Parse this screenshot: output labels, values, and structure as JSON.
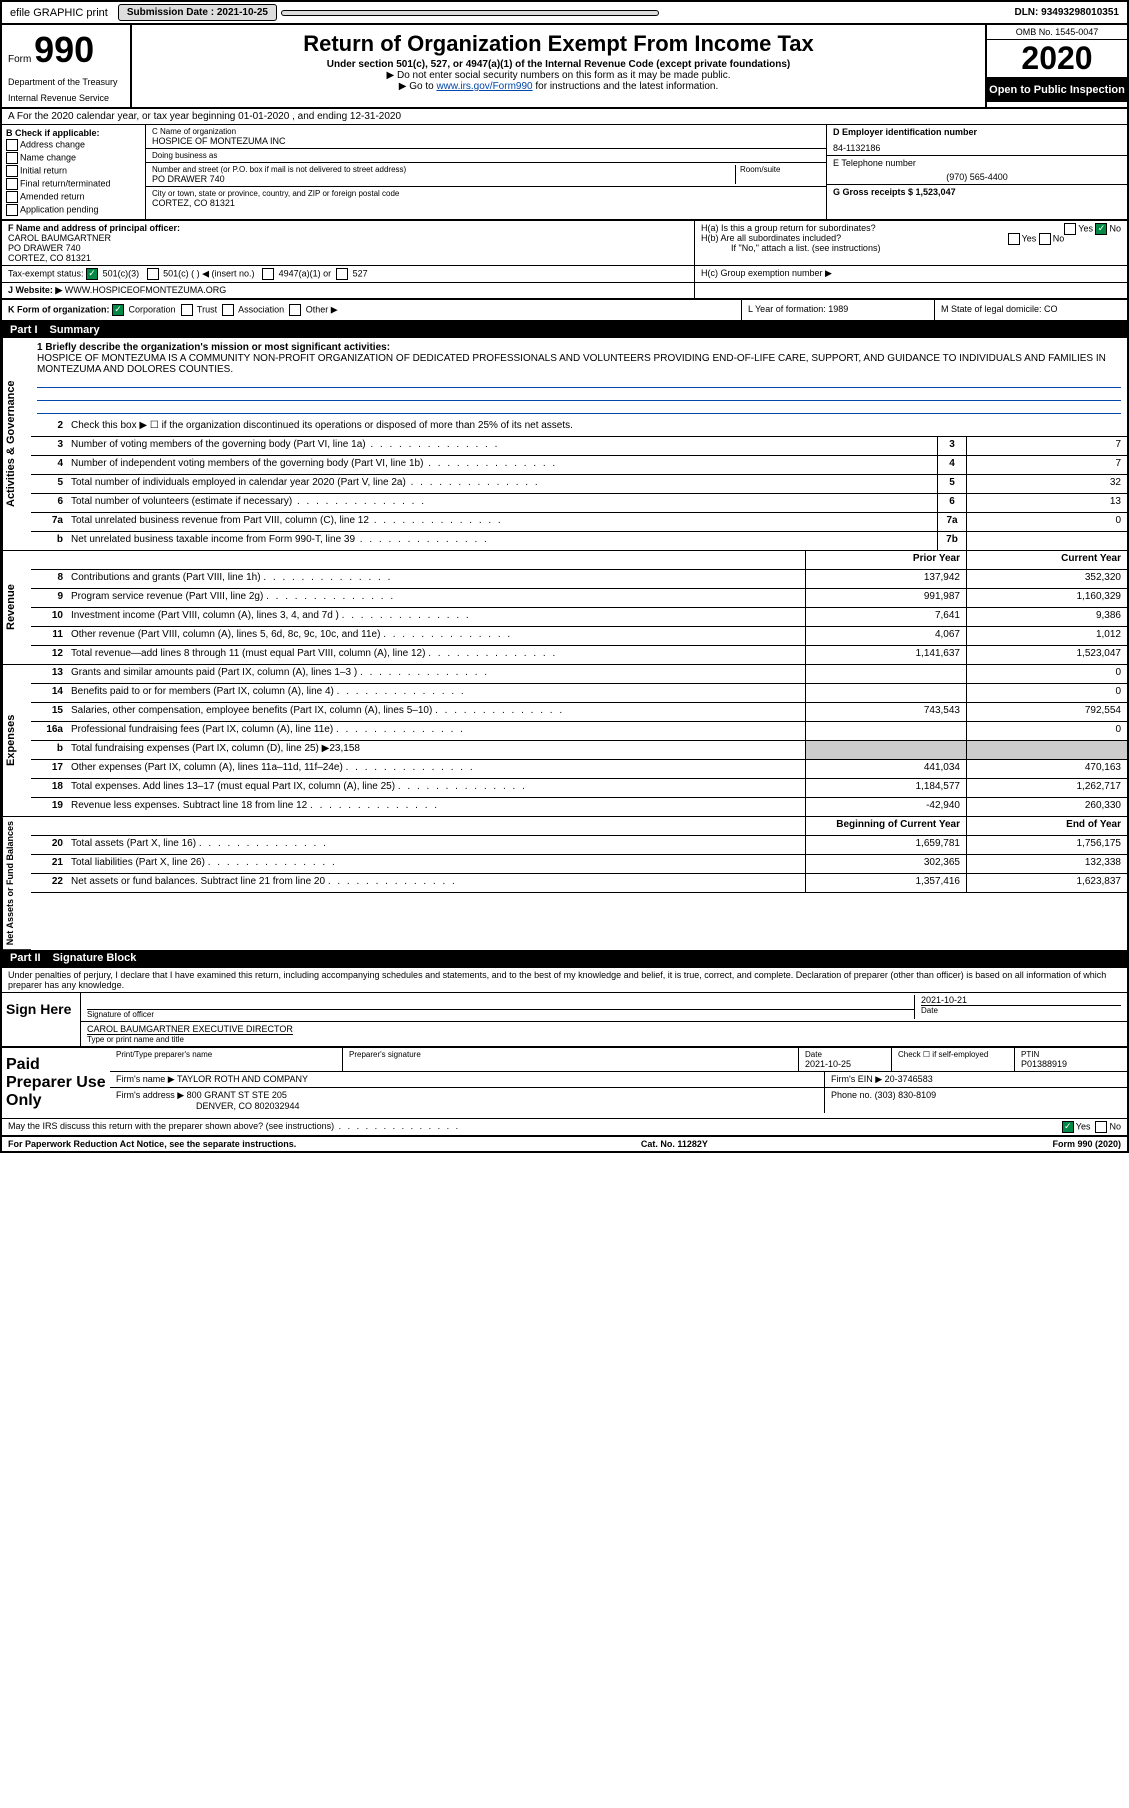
{
  "topbar": {
    "efile": "efile GRAPHIC print",
    "submission_label": "Submission Date : 2021-10-25",
    "dln": "DLN: 93493298010351"
  },
  "header": {
    "form_label": "Form",
    "form_num": "990",
    "title": "Return of Organization Exempt From Income Tax",
    "subtitle": "Under section 501(c), 527, or 4947(a)(1) of the Internal Revenue Code (except private foundations)",
    "note1": "▶ Do not enter social security numbers on this form as it may be made public.",
    "note2_pre": "▶ Go to ",
    "note2_link": "www.irs.gov/Form990",
    "note2_post": " for instructions and the latest information.",
    "dept1": "Department of the Treasury",
    "dept2": "Internal Revenue Service",
    "omb": "OMB No. 1545-0047",
    "year": "2020",
    "open": "Open to Public Inspection"
  },
  "sectionA": "A For the 2020 calendar year, or tax year beginning 01-01-2020    , and ending 12-31-2020",
  "colB": {
    "header": "B Check if applicable:",
    "items": [
      "Address change",
      "Name change",
      "Initial return",
      "Final return/terminated",
      "Amended return",
      "Application pending"
    ]
  },
  "colC": {
    "name_label": "C Name of organization",
    "name": "HOSPICE OF MONTEZUMA INC",
    "dba_label": "Doing business as",
    "addr_label": "Number and street (or P.O. box if mail is not delivered to street address)",
    "room_label": "Room/suite",
    "addr": "PO DRAWER 740",
    "city_label": "City or town, state or province, country, and ZIP or foreign postal code",
    "city": "CORTEZ, CO  81321"
  },
  "colD": {
    "ein_label": "D Employer identification number",
    "ein": "84-1132186",
    "phone_label": "E Telephone number",
    "phone": "(970) 565-4400",
    "gross_label": "G Gross receipts $ 1,523,047"
  },
  "rowF": {
    "label": "F  Name and address of principal officer:",
    "name": "CAROL BAUMGARTNER",
    "addr1": "PO DRAWER 740",
    "addr2": "CORTEZ, CO  81321"
  },
  "rowH": {
    "ha": "H(a)  Is this a group return for subordinates?",
    "hb": "H(b)  Are all subordinates included?",
    "hb_note": "If \"No,\" attach a list. (see instructions)",
    "hc": "H(c)  Group exemption number ▶",
    "yes": "Yes",
    "no": "No"
  },
  "rowI": {
    "label": "Tax-exempt status:",
    "opt1": "501(c)(3)",
    "opt2": "501(c) (  ) ◀ (insert no.)",
    "opt3": "4947(a)(1) or",
    "opt4": "527"
  },
  "rowJ": {
    "label": "J   Website: ▶",
    "url": "WWW.HOSPICEOFMONTEZUMA.ORG"
  },
  "rowK": {
    "label": "K Form of organization:",
    "corp": "Corporation",
    "trust": "Trust",
    "assoc": "Association",
    "other": "Other ▶",
    "year_label": "L Year of formation: 1989",
    "state_label": "M State of legal domicile: CO"
  },
  "part1": {
    "header_num": "Part I",
    "header_title": "Summary",
    "line1_label": "1  Briefly describe the organization's mission or most significant activities:",
    "mission": "HOSPICE OF MONTEZUMA IS A COMMUNITY NON-PROFIT ORGANIZATION OF DEDICATED PROFESSIONALS AND VOLUNTEERS PROVIDING END-OF-LIFE CARE, SUPPORT, AND GUIDANCE TO INDIVIDUALS AND FAMILIES IN MONTEZUMA AND DOLORES COUNTIES.",
    "line2": "Check this box ▶ ☐  if the organization discontinued its operations or disposed of more than 25% of its net assets.",
    "rows_gov": [
      {
        "n": "3",
        "d": "Number of voting members of the governing body (Part VI, line 1a)",
        "b": "3",
        "v": "7"
      },
      {
        "n": "4",
        "d": "Number of independent voting members of the governing body (Part VI, line 1b)",
        "b": "4",
        "v": "7"
      },
      {
        "n": "5",
        "d": "Total number of individuals employed in calendar year 2020 (Part V, line 2a)",
        "b": "5",
        "v": "32"
      },
      {
        "n": "6",
        "d": "Total number of volunteers (estimate if necessary)",
        "b": "6",
        "v": "13"
      },
      {
        "n": "7a",
        "d": "Total unrelated business revenue from Part VIII, column (C), line 12",
        "b": "7a",
        "v": "0"
      },
      {
        "n": "b",
        "d": "Net unrelated business taxable income from Form 990-T, line 39",
        "b": "7b",
        "v": ""
      }
    ],
    "col_prior": "Prior Year",
    "col_current": "Current Year",
    "rows_rev": [
      {
        "n": "8",
        "d": "Contributions and grants (Part VIII, line 1h)",
        "p": "137,942",
        "c": "352,320"
      },
      {
        "n": "9",
        "d": "Program service revenue (Part VIII, line 2g)",
        "p": "991,987",
        "c": "1,160,329"
      },
      {
        "n": "10",
        "d": "Investment income (Part VIII, column (A), lines 3, 4, and 7d )",
        "p": "7,641",
        "c": "9,386"
      },
      {
        "n": "11",
        "d": "Other revenue (Part VIII, column (A), lines 5, 6d, 8c, 9c, 10c, and 11e)",
        "p": "4,067",
        "c": "1,012"
      },
      {
        "n": "12",
        "d": "Total revenue—add lines 8 through 11 (must equal Part VIII, column (A), line 12)",
        "p": "1,141,637",
        "c": "1,523,047"
      }
    ],
    "rows_exp": [
      {
        "n": "13",
        "d": "Grants and similar amounts paid (Part IX, column (A), lines 1–3 )",
        "p": "",
        "c": "0"
      },
      {
        "n": "14",
        "d": "Benefits paid to or for members (Part IX, column (A), line 4)",
        "p": "",
        "c": "0"
      },
      {
        "n": "15",
        "d": "Salaries, other compensation, employee benefits (Part IX, column (A), lines 5–10)",
        "p": "743,543",
        "c": "792,554"
      },
      {
        "n": "16a",
        "d": "Professional fundraising fees (Part IX, column (A), line 11e)",
        "p": "",
        "c": "0"
      },
      {
        "n": "b",
        "d": "Total fundraising expenses (Part IX, column (D), line 25) ▶23,158",
        "p": "shade",
        "c": "shade"
      },
      {
        "n": "17",
        "d": "Other expenses (Part IX, column (A), lines 11a–11d, 11f–24e)",
        "p": "441,034",
        "c": "470,163"
      },
      {
        "n": "18",
        "d": "Total expenses. Add lines 13–17 (must equal Part IX, column (A), line 25)",
        "p": "1,184,577",
        "c": "1,262,717"
      },
      {
        "n": "19",
        "d": "Revenue less expenses. Subtract line 18 from line 12",
        "p": "-42,940",
        "c": "260,330"
      }
    ],
    "col_begin": "Beginning of Current Year",
    "col_end": "End of Year",
    "rows_net": [
      {
        "n": "20",
        "d": "Total assets (Part X, line 16)",
        "p": "1,659,781",
        "c": "1,756,175"
      },
      {
        "n": "21",
        "d": "Total liabilities (Part X, line 26)",
        "p": "302,365",
        "c": "132,338"
      },
      {
        "n": "22",
        "d": "Net assets or fund balances. Subtract line 21 from line 20",
        "p": "1,357,416",
        "c": "1,623,837"
      }
    ],
    "side_gov": "Activities & Governance",
    "side_rev": "Revenue",
    "side_exp": "Expenses",
    "side_net": "Net Assets or Fund Balances"
  },
  "part2": {
    "header_num": "Part II",
    "header_title": "Signature Block",
    "declaration": "Under penalties of perjury, I declare that I have examined this return, including accompanying schedules and statements, and to the best of my knowledge and belief, it is true, correct, and complete. Declaration of preparer (other than officer) is based on all information of which preparer has any knowledge.",
    "sign_here": "Sign Here",
    "sig_officer": "Signature of officer",
    "sig_date": "2021-10-21",
    "sig_date_label": "Date",
    "officer_name": "CAROL BAUMGARTNER  EXECUTIVE DIRECTOR",
    "officer_label": "Type or print name and title",
    "paid_label": "Paid Preparer Use Only",
    "prep_name_label": "Print/Type preparer's name",
    "prep_sig_label": "Preparer's signature",
    "prep_date_label": "Date",
    "prep_date": "2021-10-25",
    "check_self": "Check ☐ if self-employed",
    "ptin_label": "PTIN",
    "ptin": "P01388919",
    "firm_name_label": "Firm's name    ▶",
    "firm_name": "TAYLOR ROTH AND COMPANY",
    "firm_ein_label": "Firm's EIN ▶",
    "firm_ein": "20-3746583",
    "firm_addr_label": "Firm's address ▶",
    "firm_addr1": "800 GRANT ST STE 205",
    "firm_addr2": "DENVER, CO  802032944",
    "firm_phone_label": "Phone no.",
    "firm_phone": "(303) 830-8109",
    "discuss": "May the IRS discuss this return with the preparer shown above? (see instructions)",
    "yes": "Yes",
    "no": "No"
  },
  "footer": {
    "paperwork": "For Paperwork Reduction Act Notice, see the separate instructions.",
    "cat": "Cat. No. 11282Y",
    "form": "Form 990 (2020)"
  }
}
